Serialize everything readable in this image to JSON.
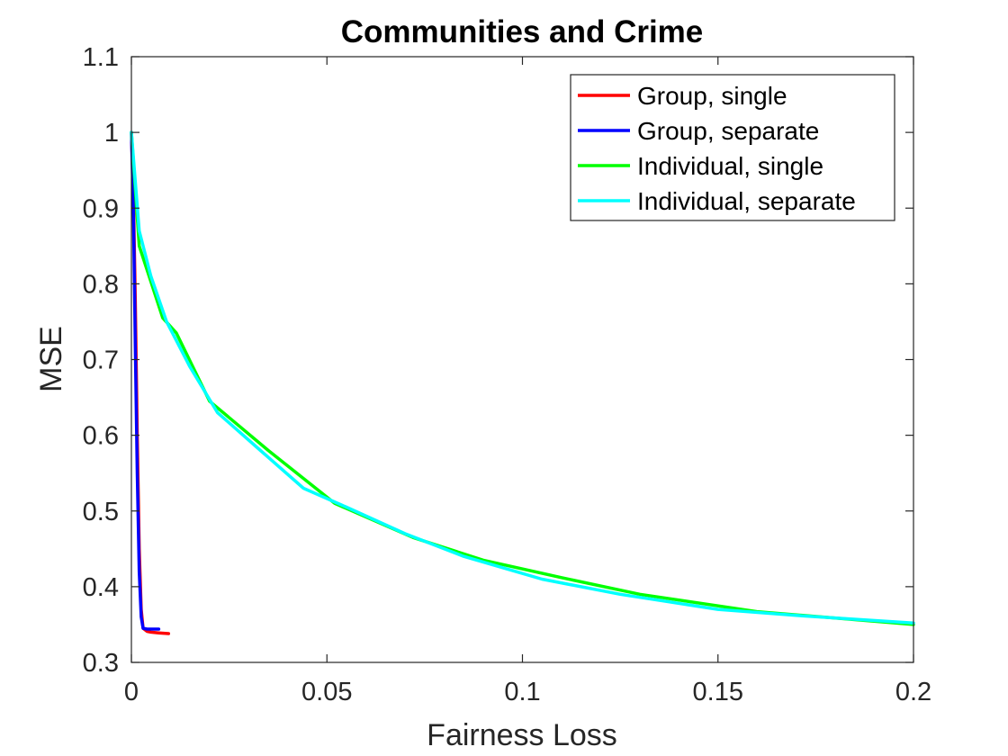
{
  "chart_data": {
    "type": "line",
    "title": "Communities and Crime",
    "xlabel": "Fairness Loss",
    "ylabel": "MSE",
    "xlim": [
      0,
      0.2
    ],
    "ylim": [
      0.3,
      1.1
    ],
    "xticks": [
      0,
      0.05,
      0.1,
      0.15,
      0.2
    ],
    "xtick_labels": [
      "0",
      "0.05",
      "0.1",
      "0.15",
      "0.2"
    ],
    "yticks": [
      0.3,
      0.4,
      0.5,
      0.6,
      0.7,
      0.8,
      0.9,
      1.0,
      1.1
    ],
    "ytick_labels": [
      "0.3",
      "0.4",
      "0.5",
      "0.6",
      "0.7",
      "0.8",
      "0.9",
      "1",
      "1.1"
    ],
    "grid": false,
    "legend_position": "top-right",
    "series": [
      {
        "name": "Group, single",
        "color": "#ff0000",
        "x": [
          0,
          0.0005,
          0.001,
          0.0015,
          0.002,
          0.0025,
          0.003,
          0.004,
          0.005,
          0.007,
          0.0095
        ],
        "y": [
          1.0,
          0.92,
          0.78,
          0.6,
          0.45,
          0.37,
          0.345,
          0.341,
          0.34,
          0.339,
          0.338
        ]
      },
      {
        "name": "Group, separate",
        "color": "#0000ff",
        "x": [
          0,
          0.0005,
          0.001,
          0.0015,
          0.002,
          0.0025,
          0.003,
          0.004,
          0.0055,
          0.007
        ],
        "y": [
          1.0,
          0.9,
          0.72,
          0.55,
          0.42,
          0.36,
          0.345,
          0.344,
          0.344,
          0.344
        ]
      },
      {
        "name": "Individual, single",
        "color": "#00ff00",
        "x": [
          0,
          0.002,
          0.008,
          0.0115,
          0.02,
          0.035,
          0.052,
          0.072,
          0.09,
          0.11,
          0.13,
          0.16,
          0.2
        ],
        "y": [
          1.0,
          0.85,
          0.755,
          0.735,
          0.645,
          0.58,
          0.51,
          0.465,
          0.435,
          0.412,
          0.39,
          0.367,
          0.35
        ]
      },
      {
        "name": "Individual, separate",
        "color": "#00ffff",
        "x": [
          0,
          0.002,
          0.005,
          0.009,
          0.015,
          0.022,
          0.033,
          0.044,
          0.055,
          0.07,
          0.085,
          0.105,
          0.125,
          0.15,
          0.17,
          0.2
        ],
        "y": [
          1.0,
          0.87,
          0.81,
          0.75,
          0.69,
          0.63,
          0.58,
          0.53,
          0.505,
          0.47,
          0.44,
          0.41,
          0.39,
          0.37,
          0.362,
          0.352
        ]
      }
    ]
  }
}
